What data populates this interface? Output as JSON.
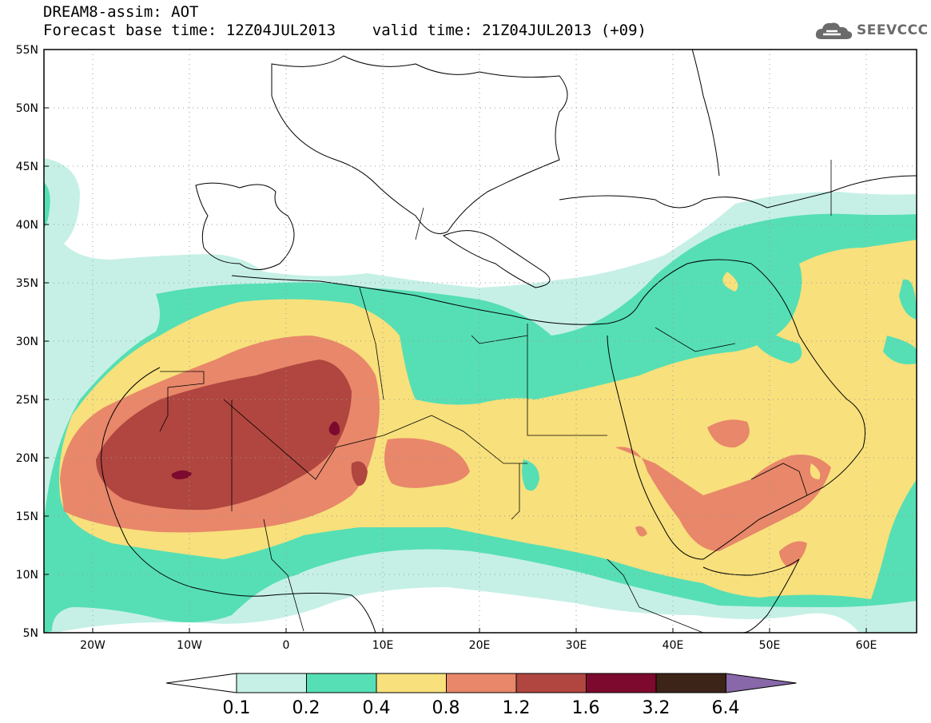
{
  "header": {
    "title_line1": "DREAM8-assim: AOT",
    "title_line2": "Forecast base time: 12Z04JUL2013    valid time: 21Z04JUL2013 (+09)"
  },
  "logo": {
    "text": "SEEVCCC",
    "icon": "cloud-icon"
  },
  "map": {
    "lon_range": [
      -25,
      65
    ],
    "lat_range": [
      5,
      55
    ],
    "lat_labels": [
      "55N",
      "50N",
      "45N",
      "40N",
      "35N",
      "30N",
      "25N",
      "20N",
      "15N",
      "10N",
      "5N"
    ],
    "lon_labels": [
      "20W",
      "10W",
      "0",
      "10E",
      "20E",
      "30E",
      "40E",
      "50E",
      "60E"
    ],
    "grid": "dotted",
    "variable": "AOT"
  },
  "colorbar": {
    "levels": [
      "0.1",
      "0.2",
      "0.4",
      "0.8",
      "1.2",
      "1.6",
      "3.2",
      "6.4"
    ],
    "colors": [
      "#ffffff",
      "#c6f0e6",
      "#56dfb4",
      "#f8e07c",
      "#e8876a",
      "#b0463f",
      "#7d0a2e",
      "#3c2418",
      "#8868a8"
    ]
  }
}
